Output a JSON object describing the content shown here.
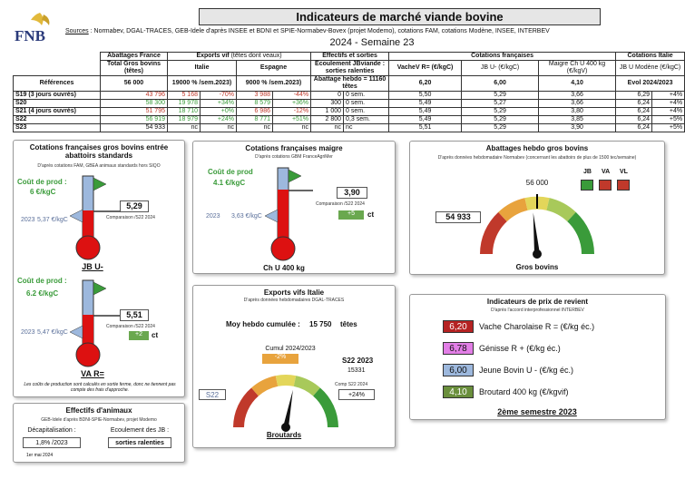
{
  "header": {
    "logo": "FNB",
    "title": "Indicateurs de marché viande bovine",
    "sources_label": "Sources",
    "sources_text": " : Normabev, DGAL-TRACES, GEB-Idele d'après INSEE et BDNI et SPIE-Normabev-Bovex (projet Modemo), cotations FAM, cotations Modène, INSEE, INTERBEV",
    "period": "2024 - Semaine 23"
  },
  "table": {
    "group_headers": [
      "Abattages France",
      "Exports vif",
      "(têtes dont veaux)",
      "Effectifs et sorties",
      "Cotations françaises",
      "Cotations Italie"
    ],
    "sub_headers": [
      "Total Gros bovins (têtes)",
      "Italie",
      "Espagne",
      "Ecoulement JBviande : sorties ralenties",
      "VacheV R= (€/kgC)",
      "JB U- (€/kgC)",
      "Maigre Ch U 400 kg (€/kgV)",
      "JB U Modène (€/kgC)"
    ],
    "ref_row": {
      "label": "Références",
      "abattages": "56 000",
      "italie": "19000 % /sem.2023)",
      "espagne": "9000 % /sem.2023)",
      "effectifs": "Abattage hebdo = 11160 têtes",
      "vache": "6,20",
      "jb": "6,00",
      "maigre": "4,10",
      "italie_cot": "Evol 2024/2023"
    },
    "rows": [
      {
        "label": "S19 (3 jours ouvrés)",
        "abattages": "43 796",
        "it_val": "5 168",
        "it_pct": "-70%",
        "es_val": "3 988",
        "es_pct": "-44%",
        "eff_val": "0",
        "eff_unit": "0 sem.",
        "vache": "5,50",
        "jb": "5,29",
        "maigre": "3,66",
        "modene": "6,29",
        "evol": "+4%",
        "ab_col": "red",
        "it_col": "red",
        "es_col": "red"
      },
      {
        "label": "S20",
        "abattages": "58 300",
        "it_val": "19 978",
        "it_pct": "+34%",
        "es_val": "8 579",
        "es_pct": "+36%",
        "eff_val": "300",
        "eff_unit": "0 sem.",
        "vache": "5,49",
        "jb": "5,27",
        "maigre": "3,66",
        "modene": "6,24",
        "evol": "+4%",
        "ab_col": "green",
        "it_col": "green",
        "es_col": "green"
      },
      {
        "label": "S21 (4 jours ouvrés)",
        "abattages": "51 795",
        "it_val": "18 710",
        "it_pct": "+0%",
        "es_val": "6 986",
        "es_pct": "-12%",
        "eff_val": "1 000",
        "eff_unit": "0 sem.",
        "vache": "5,49",
        "jb": "5,29",
        "maigre": "3,80",
        "modene": "6,24",
        "evol": "+4%",
        "ab_col": "red",
        "it_col": "green",
        "es_col": "red"
      },
      {
        "label": "S22",
        "abattages": "56 919",
        "it_val": "18 979",
        "it_pct": "+24%",
        "es_val": "8 771",
        "es_pct": "+51%",
        "eff_val": "2 800",
        "eff_unit": "0,3 sem.",
        "vache": "5,49",
        "jb": "5,29",
        "maigre": "3,85",
        "modene": "6,24",
        "evol": "+5%",
        "ab_col": "green",
        "it_col": "green",
        "es_col": "green"
      },
      {
        "label": "S23",
        "abattages": "54 933",
        "it_val": "nc",
        "it_pct": "nc",
        "es_val": "nc",
        "es_pct": "nc",
        "eff_val": "nc",
        "eff_unit": "nc",
        "vache": "5,51",
        "jb": "5,29",
        "maigre": "3,90",
        "modene": "6,24",
        "evol": "+5%",
        "ab_col": "",
        "it_col": "",
        "es_col": ""
      }
    ]
  },
  "gros_bovins": {
    "title": "Cotations françaises gros bovins entrée abattoirs standards",
    "source": "D'après cotations FAM, GBEA animaux standards hors SIQO",
    "jb": {
      "cout_label": "Coût de prod :",
      "cout_val": "6 €/kgC",
      "y2023": "2023",
      "v2023": "5,37 €/kgC",
      "value": "5,29",
      "comp_label": "Comparaison /S22 2024",
      "comp_val": "",
      "name": "JB U-"
    },
    "va": {
      "cout_label": "Coût de prod :",
      "cout_val": "6.2 €/kgC",
      "y2023": "2023",
      "v2023": "5,47 €/kgC",
      "value": "5,51",
      "comp_label": "Comparaison /S22 2024",
      "comp_val": "+2",
      "comp_unit": "ct",
      "name": "VA R="
    },
    "footnote": "Les coûts de production sont calculés en sortie ferme, donc ne tiennent pas compte des frais d'approche."
  },
  "maigre": {
    "title": "Cotations françaises maigre",
    "source": "D'après cotations GBM FranceAgriMer",
    "cout_label": "Coût de prod",
    "cout_val": "4.1 €/kgC",
    "y2023": "2023",
    "v2023": "3,63 €/kgC",
    "value": "3,90",
    "comp_label": "Comparaison /S22 2024",
    "comp_val": "+5",
    "comp_unit": "ct",
    "name": "Ch U 400 kg"
  },
  "abattages": {
    "title": "Abattages hebdo gros bovins",
    "source": "D'après données hebdomadaire Normabev (concernant les abattoirs de plus de 1500 tec/semaine)",
    "ref": "56 000",
    "value": "54 933",
    "legend": [
      "JB",
      "VA",
      "VL"
    ],
    "legend_colors": [
      "#3a9b3a",
      "#c0392b",
      "#c0392b"
    ],
    "name": "Gros bovins",
    "gauge_fraction": 0.47
  },
  "exports": {
    "title": "Exports vifs  Italie",
    "source": "D'après données hebdomadaires DGAL-TRACES",
    "moy_label": "Moy hebdo cumulée :",
    "moy_val": "15 750",
    "moy_unit": "têtes",
    "cumul_label": "Cumul 2024/2023",
    "cumul_val": "-2%",
    "week_label": "S22 2023",
    "week_val": "15331",
    "comp_label": "Comp S22 2024",
    "comp_val": "+24%",
    "side_label": "S22",
    "name": "Broutards",
    "gauge_fraction": 0.56
  },
  "effectifs": {
    "title": "Effectifs d'animaux",
    "source": "GEB-Idele d'après BDNI-SPIE-Normabev, projet Modemo",
    "decap_label": "Décapitalisation :",
    "decap_val": "1,8% /2023",
    "ecoul_label": "Ecoulement des JB :",
    "ecoul_val": "sorties ralenties",
    "date": "1er mai 2024"
  },
  "revient": {
    "title": "Indicateurs de prix de revient",
    "source": "D'après l'accord interprofessionnel INTERBEV",
    "items": [
      {
        "value": "6,20",
        "label": "Vache Charolaise R = (€/kg éc.)",
        "color": "#b52222"
      },
      {
        "value": "6,78",
        "label": "Génisse R + (€/kg éc.)",
        "color": "#e27ee6"
      },
      {
        "value": "6,00",
        "label": "Jeune Bovin U - (€/kg éc.)",
        "color": "#9db8dd"
      },
      {
        "value": "4,10",
        "label": "Broutard 400 kg (€/kgvif)",
        "color": "#6a8f3c"
      }
    ],
    "footer": "2ème semestre 2023"
  }
}
